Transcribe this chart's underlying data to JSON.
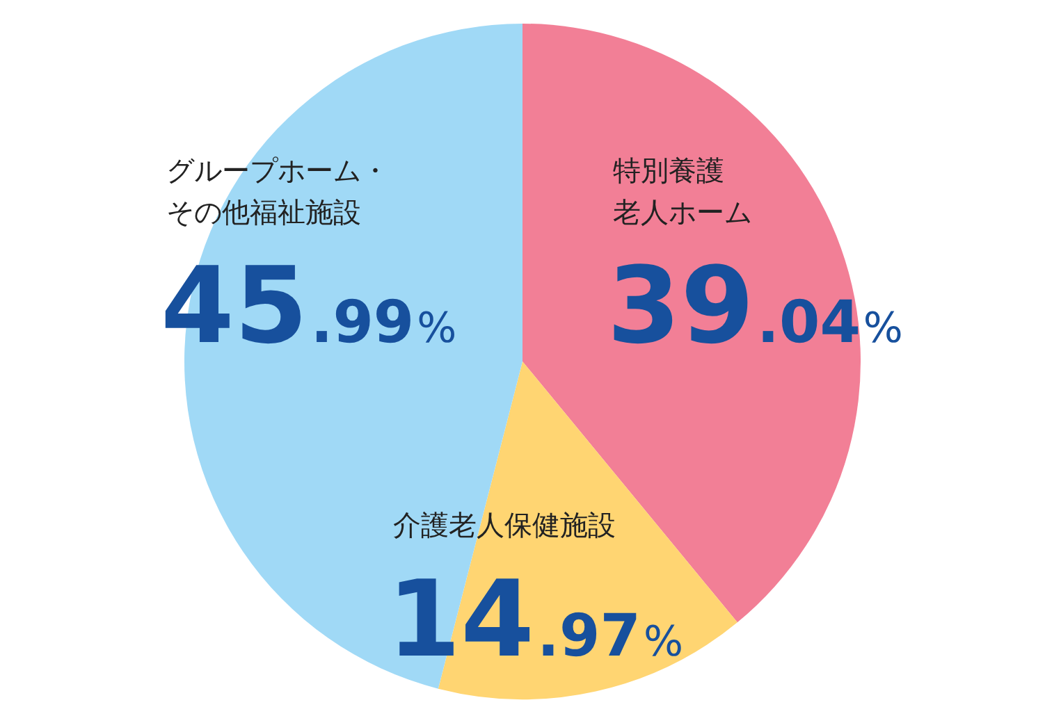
{
  "chart_data": {
    "type": "pie",
    "categories": [
      "特別養護老人ホーム",
      "介護老人保健施設",
      "グループホーム・その他福祉施設"
    ],
    "values": [
      39.04,
      14.97,
      45.99
    ],
    "colors": [
      "#f27f96",
      "#ffd572",
      "#a0d9f6"
    ],
    "value_labels": [
      "39.04%",
      "14.97%",
      "45.99%"
    ],
    "legend": false
  }
}
